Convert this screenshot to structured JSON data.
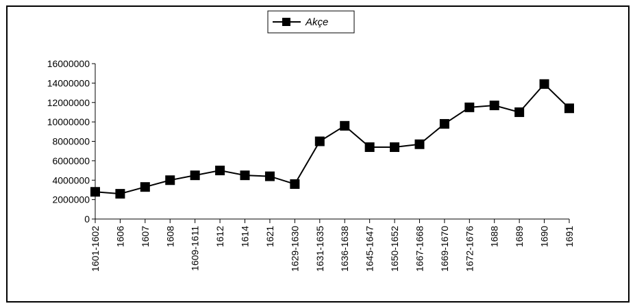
{
  "chart_data": {
    "type": "line",
    "categories": [
      "1601-1602",
      "1606",
      "1607",
      "1608",
      "1609-1611",
      "1612",
      "1614",
      "1621",
      "1629-1630",
      "1631-1635",
      "1636-1638",
      "1645-1647",
      "1650-1652",
      "1667-1668",
      "1669-1670",
      "1672-1676",
      "1688",
      "1689",
      "1690",
      "1691"
    ],
    "series": [
      {
        "name": "Akçe",
        "values": [
          2800000,
          2600000,
          3300000,
          4000000,
          4500000,
          5000000,
          4500000,
          4400000,
          3600000,
          8000000,
          9600000,
          7400000,
          7400000,
          7700000,
          9800000,
          11500000,
          11700000,
          11000000,
          13900000,
          11400000
        ]
      }
    ],
    "yticks": [
      "0",
      "2000000",
      "4000000",
      "6000000",
      "8000000",
      "10000000",
      "12000000",
      "14000000",
      "16000000"
    ],
    "ylim": [
      0,
      16000000
    ],
    "legend_position": "top-center",
    "grid": false,
    "colors": {
      "line": "#000000",
      "marker": "#000000"
    },
    "marker": "square"
  }
}
